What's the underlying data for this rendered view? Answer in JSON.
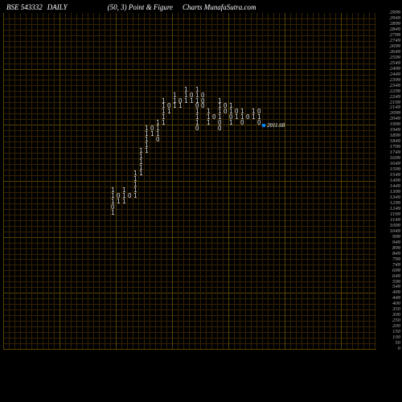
{
  "header": {
    "ticker": "BSE 543332",
    "timeframe": "DAILY",
    "params": "(50,  3) Point & Figure",
    "source": "Charts MunafaSutra.com"
  },
  "chart": {
    "type": "point-and-figure",
    "background": "#000000",
    "grid_color": "#332200",
    "major_grid_color": "#554400",
    "text_color": "#ffffff",
    "y_label_color": "#aaaaaa",
    "cell_width": 7.0,
    "cell_height": 7.0,
    "grid_cols": 66,
    "grid_rows": 60,
    "ymin": 0,
    "ymax": 2999,
    "ytick_step": 50,
    "marker": {
      "value": "2011.68",
      "color": "#0084ff",
      "at_price": 2000
    },
    "y_labels": [
      2999,
      2949,
      2899,
      2849,
      2799,
      2749,
      2699,
      2649,
      2599,
      2549,
      2499,
      2449,
      2399,
      2349,
      2299,
      2249,
      2199,
      2149,
      2099,
      2049,
      1999,
      1949,
      1899,
      1849,
      1799,
      1749,
      1699,
      1649,
      1599,
      1549,
      1499,
      1449,
      1399,
      1349,
      1299,
      1249,
      1199,
      1149,
      1099,
      1049,
      999,
      949,
      899,
      849,
      799,
      749,
      699,
      649,
      599,
      549,
      499,
      449,
      400,
      350,
      300,
      250,
      200,
      150,
      100,
      50,
      0
    ],
    "columns": [
      {
        "col": 19,
        "cells": [
          {
            "r": 1399,
            "c": "1"
          },
          {
            "r": 1349,
            "c": "1"
          },
          {
            "r": 1299,
            "c": "1"
          },
          {
            "r": 1249,
            "c": "O"
          },
          {
            "r": 1199,
            "c": "1"
          }
        ]
      },
      {
        "col": 20,
        "cells": [
          {
            "r": 1349,
            "c": "O"
          },
          {
            "r": 1299,
            "c": "1"
          }
        ]
      },
      {
        "col": 21,
        "cells": [
          {
            "r": 1399,
            "c": "1"
          },
          {
            "r": 1349,
            "c": "1"
          },
          {
            "r": 1299,
            "c": "1"
          }
        ]
      },
      {
        "col": 22,
        "cells": [
          {
            "r": 1349,
            "c": "O"
          }
        ]
      },
      {
        "col": 23,
        "cells": [
          {
            "r": 1549,
            "c": "1"
          },
          {
            "r": 1499,
            "c": "1"
          },
          {
            "r": 1449,
            "c": "1"
          },
          {
            "r": 1399,
            "c": "1"
          },
          {
            "r": 1349,
            "c": "1"
          }
        ]
      },
      {
        "col": 24,
        "cells": [
          {
            "r": 1749,
            "c": "1"
          },
          {
            "r": 1699,
            "c": "1"
          },
          {
            "r": 1649,
            "c": "1"
          },
          {
            "r": 1599,
            "c": "1"
          },
          {
            "r": 1549,
            "c": "1"
          }
        ]
      },
      {
        "col": 25,
        "cells": [
          {
            "r": 1949,
            "c": "1"
          },
          {
            "r": 1899,
            "c": "1"
          },
          {
            "r": 1849,
            "c": "1"
          },
          {
            "r": 1799,
            "c": "1"
          },
          {
            "r": 1749,
            "c": "1"
          }
        ]
      },
      {
        "col": 26,
        "cells": [
          {
            "r": 1949,
            "c": "O"
          },
          {
            "r": 1899,
            "c": "1"
          }
        ]
      },
      {
        "col": 27,
        "cells": [
          {
            "r": 1999,
            "c": "1"
          },
          {
            "r": 1949,
            "c": "1"
          },
          {
            "r": 1899,
            "c": "1"
          },
          {
            "r": 1849,
            "c": "O"
          }
        ]
      },
      {
        "col": 28,
        "cells": [
          {
            "r": 2199,
            "c": "1"
          },
          {
            "r": 2149,
            "c": "1"
          },
          {
            "r": 2099,
            "c": "1"
          },
          {
            "r": 2049,
            "c": "1"
          },
          {
            "r": 1999,
            "c": "1"
          }
        ]
      },
      {
        "col": 29,
        "cells": [
          {
            "r": 2149,
            "c": "O"
          },
          {
            "r": 2099,
            "c": "1"
          }
        ]
      },
      {
        "col": 30,
        "cells": [
          {
            "r": 2249,
            "c": "1"
          },
          {
            "r": 2199,
            "c": "1"
          },
          {
            "r": 2149,
            "c": "1"
          }
        ]
      },
      {
        "col": 31,
        "cells": [
          {
            "r": 2199,
            "c": "O"
          },
          {
            "r": 2149,
            "c": "1"
          }
        ]
      },
      {
        "col": 32,
        "cells": [
          {
            "r": 2299,
            "c": "1"
          },
          {
            "r": 2249,
            "c": "1"
          },
          {
            "r": 2199,
            "c": "1"
          }
        ]
      },
      {
        "col": 33,
        "cells": [
          {
            "r": 2249,
            "c": "O"
          },
          {
            "r": 2199,
            "c": "1"
          }
        ]
      },
      {
        "col": 34,
        "cells": [
          {
            "r": 2299,
            "c": "1"
          },
          {
            "r": 2249,
            "c": "1"
          },
          {
            "r": 2199,
            "c": "1"
          },
          {
            "r": 2149,
            "c": "O"
          },
          {
            "r": 2099,
            "c": "1"
          },
          {
            "r": 2049,
            "c": "1"
          },
          {
            "r": 1999,
            "c": "1"
          },
          {
            "r": 1949,
            "c": "O"
          }
        ]
      },
      {
        "col": 35,
        "cells": [
          {
            "r": 2249,
            "c": "O"
          },
          {
            "r": 2199,
            "c": "O"
          },
          {
            "r": 2149,
            "c": "O"
          }
        ]
      },
      {
        "col": 36,
        "cells": [
          {
            "r": 2099,
            "c": "1"
          },
          {
            "r": 2049,
            "c": "1"
          },
          {
            "r": 1999,
            "c": "1"
          }
        ]
      },
      {
        "col": 37,
        "cells": [
          {
            "r": 2049,
            "c": "O"
          }
        ]
      },
      {
        "col": 38,
        "cells": [
          {
            "r": 2199,
            "c": "1"
          },
          {
            "r": 2149,
            "c": "1"
          },
          {
            "r": 2099,
            "c": "1"
          },
          {
            "r": 2049,
            "c": "1"
          },
          {
            "r": 1999,
            "c": "O"
          },
          {
            "r": 1949,
            "c": "O"
          }
        ]
      },
      {
        "col": 39,
        "cells": [
          {
            "r": 2149,
            "c": "O"
          },
          {
            "r": 2099,
            "c": "O"
          }
        ]
      },
      {
        "col": 40,
        "cells": [
          {
            "r": 2149,
            "c": "1"
          },
          {
            "r": 2099,
            "c": "1"
          },
          {
            "r": 2049,
            "c": "O"
          },
          {
            "r": 1999,
            "c": "1"
          }
        ]
      },
      {
        "col": 41,
        "cells": [
          {
            "r": 2099,
            "c": "O"
          },
          {
            "r": 2049,
            "c": "1"
          }
        ]
      },
      {
        "col": 42,
        "cells": [
          {
            "r": 2099,
            "c": "1"
          },
          {
            "r": 2049,
            "c": "1"
          },
          {
            "r": 1999,
            "c": "O"
          }
        ]
      },
      {
        "col": 43,
        "cells": [
          {
            "r": 2049,
            "c": "O"
          }
        ]
      },
      {
        "col": 44,
        "cells": [
          {
            "r": 2099,
            "c": "1"
          },
          {
            "r": 2049,
            "c": "1"
          }
        ]
      },
      {
        "col": 45,
        "cells": [
          {
            "r": 2099,
            "c": "O"
          },
          {
            "r": 2049,
            "c": "1"
          },
          {
            "r": 1999,
            "c": "O"
          }
        ]
      }
    ]
  }
}
